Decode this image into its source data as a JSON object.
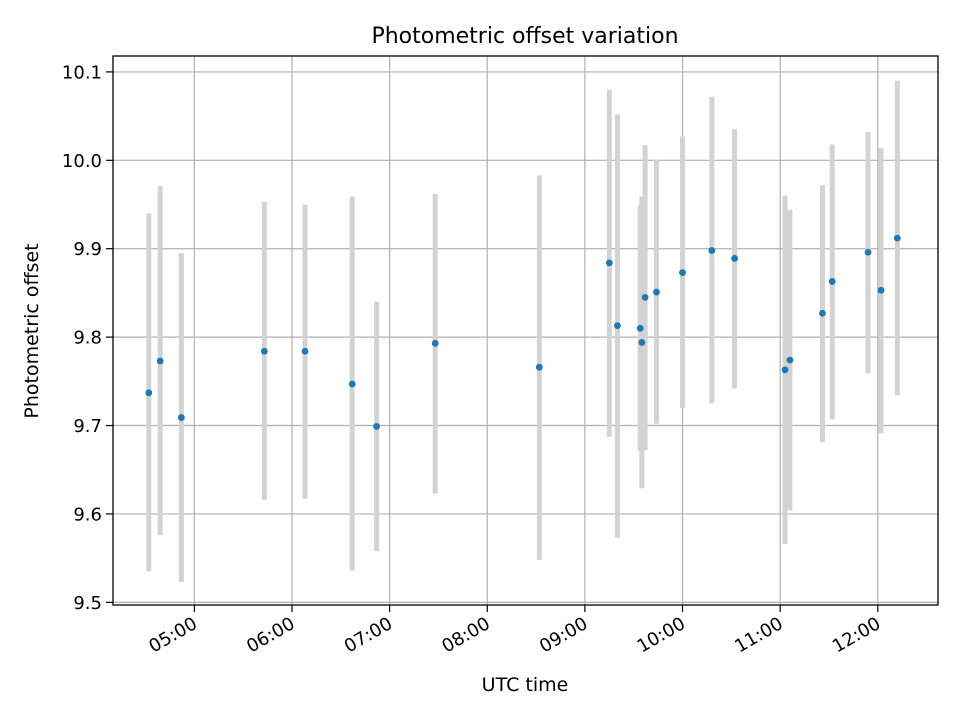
{
  "chart_data": {
    "type": "scatter",
    "title": "Photometric offset variation",
    "xlabel": "UTC time",
    "ylabel": "Photometric offset",
    "grid": true,
    "xlim": [
      "04:10",
      "12:37"
    ],
    "ylim": [
      9.497,
      10.118
    ],
    "x_ticks": [
      "05:00",
      "06:00",
      "07:00",
      "08:00",
      "09:00",
      "10:00",
      "11:00",
      "12:00"
    ],
    "y_ticks": [
      "9.5",
      "9.6",
      "9.7",
      "9.8",
      "9.9",
      "10.0",
      "10.1"
    ],
    "colors": {
      "points": "#1f77b4",
      "errorbars": "#d3d3d3",
      "grid": "#b0b0b0"
    },
    "points": [
      {
        "x": "04:32",
        "y": 9.737,
        "low": 9.535,
        "high": 9.94
      },
      {
        "x": "04:39",
        "y": 9.773,
        "low": 9.576,
        "high": 9.971
      },
      {
        "x": "04:52",
        "y": 9.709,
        "low": 9.523,
        "high": 9.895
      },
      {
        "x": "05:43",
        "y": 9.784,
        "low": 9.616,
        "high": 9.953
      },
      {
        "x": "06:08",
        "y": 9.784,
        "low": 9.617,
        "high": 9.95
      },
      {
        "x": "06:37",
        "y": 9.747,
        "low": 9.536,
        "high": 9.959
      },
      {
        "x": "06:52",
        "y": 9.699,
        "low": 9.558,
        "high": 9.84
      },
      {
        "x": "07:28",
        "y": 9.793,
        "low": 9.623,
        "high": 9.962
      },
      {
        "x": "08:32",
        "y": 9.766,
        "low": 9.548,
        "high": 9.983
      },
      {
        "x": "09:15",
        "y": 9.884,
        "low": 9.687,
        "high": 10.08
      },
      {
        "x": "09:20",
        "y": 9.813,
        "low": 9.573,
        "high": 10.052
      },
      {
        "x": "09:34",
        "y": 9.81,
        "low": 9.671,
        "high": 9.949
      },
      {
        "x": "09:35",
        "y": 9.794,
        "low": 9.629,
        "high": 9.959
      },
      {
        "x": "09:37",
        "y": 9.845,
        "low": 9.672,
        "high": 10.017
      },
      {
        "x": "09:44",
        "y": 9.851,
        "low": 9.702,
        "high": 10.001
      },
      {
        "x": "10:00",
        "y": 9.873,
        "low": 9.72,
        "high": 10.027
      },
      {
        "x": "10:18",
        "y": 9.898,
        "low": 9.725,
        "high": 10.072
      },
      {
        "x": "10:32",
        "y": 9.889,
        "low": 9.742,
        "high": 10.035
      },
      {
        "x": "11:03",
        "y": 9.763,
        "low": 9.566,
        "high": 9.96
      },
      {
        "x": "11:06",
        "y": 9.774,
        "low": 9.604,
        "high": 9.944
      },
      {
        "x": "11:26",
        "y": 9.827,
        "low": 9.681,
        "high": 9.972
      },
      {
        "x": "11:32",
        "y": 9.863,
        "low": 9.707,
        "high": 10.018
      },
      {
        "x": "11:54",
        "y": 9.896,
        "low": 9.759,
        "high": 10.032
      },
      {
        "x": "12:02",
        "y": 9.853,
        "low": 9.691,
        "high": 10.014
      },
      {
        "x": "12:12",
        "y": 9.912,
        "low": 9.734,
        "high": 10.09
      }
    ]
  }
}
